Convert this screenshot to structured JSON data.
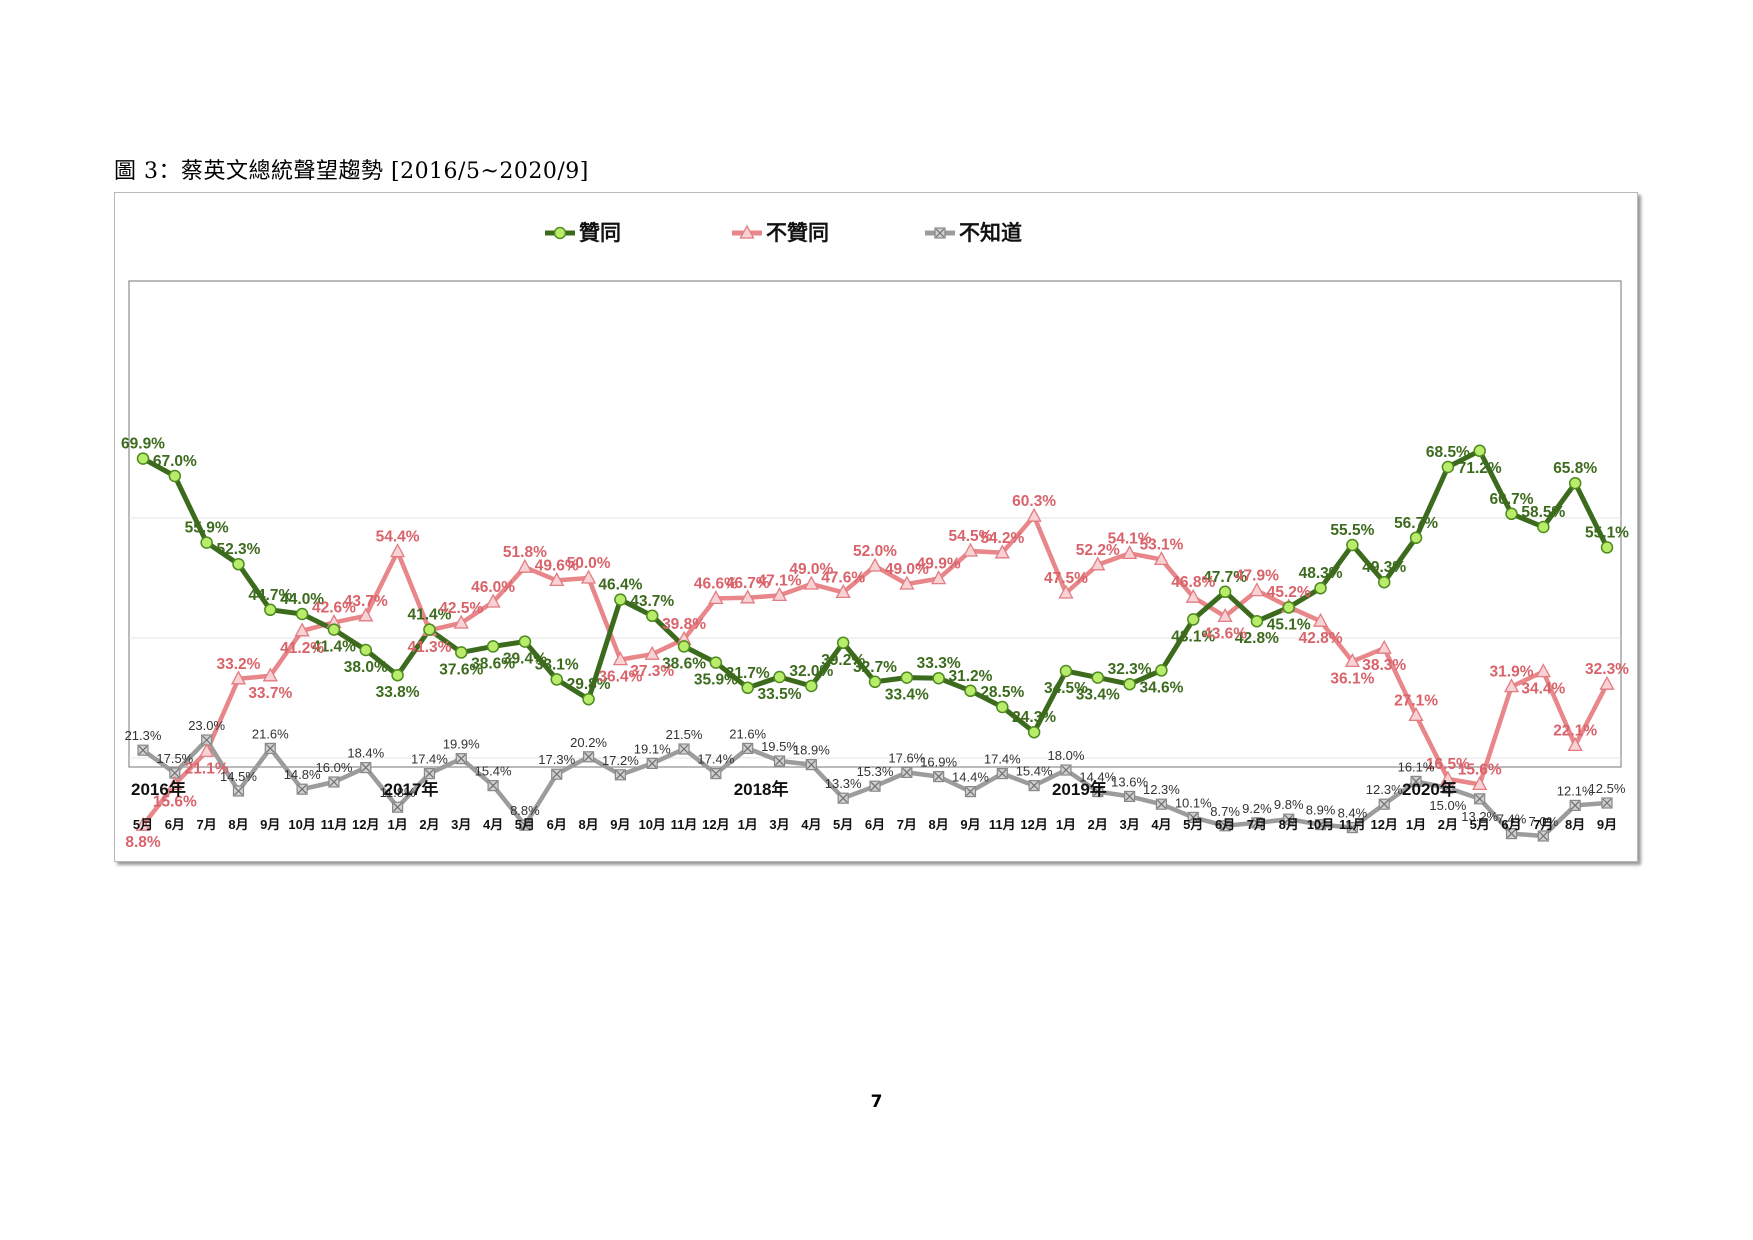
{
  "figure_title": "圖 3：蔡英文總統聲望趨勢 [2016/5~2020/9]",
  "page_number": "7",
  "chart_data": {
    "type": "line",
    "legend_position": "top",
    "grid": true,
    "ylim": [
      0,
      80
    ],
    "categories": [
      "5月",
      "6月",
      "7月",
      "8月",
      "9月",
      "10月",
      "11月",
      "12月",
      "1月",
      "2月",
      "3月",
      "4月",
      "5月",
      "6月",
      "8月",
      "9月",
      "10月",
      "11月",
      "12月",
      "1月",
      "3月",
      "4月",
      "5月",
      "6月",
      "7月",
      "8月",
      "9月",
      "11月",
      "12月",
      "1月",
      "2月",
      "3月",
      "4月",
      "5月",
      "6月",
      "7月",
      "8月",
      "10月",
      "11月",
      "12月",
      "1月",
      "2月",
      "5月",
      "6月",
      "7月",
      "8月",
      "9月"
    ],
    "year_labels": [
      {
        "label": "2016年",
        "index": 0
      },
      {
        "label": "2017年",
        "index": 8
      },
      {
        "label": "2018年",
        "index": 19
      },
      {
        "label": "2019年",
        "index": 29
      },
      {
        "label": "2020年",
        "index": 40
      }
    ],
    "series": [
      {
        "name": "贊同",
        "color": "#3d6b1e",
        "marker": "circle",
        "values": [
          69.9,
          67.0,
          55.9,
          52.3,
          44.7,
          44.0,
          41.4,
          38.0,
          33.8,
          41.4,
          37.6,
          38.6,
          39.4,
          33.1,
          29.8,
          46.4,
          43.7,
          38.6,
          35.9,
          31.7,
          33.5,
          32.0,
          39.2,
          32.7,
          33.4,
          33.3,
          31.2,
          28.5,
          24.3,
          34.5,
          33.4,
          32.3,
          34.6,
          43.1,
          47.7,
          42.8,
          45.1,
          48.3,
          55.5,
          49.3,
          56.7,
          68.5,
          71.2,
          60.7,
          58.5,
          65.8,
          55.1
        ]
      },
      {
        "name": "不贊同",
        "color": "#e8868a",
        "marker": "triangle",
        "values": [
          8.8,
          15.6,
          21.1,
          33.2,
          33.7,
          41.2,
          42.6,
          43.7,
          54.4,
          41.3,
          42.5,
          46.0,
          51.8,
          49.6,
          50.0,
          36.4,
          37.3,
          39.8,
          46.6,
          46.7,
          47.1,
          49.0,
          47.6,
          52.0,
          49.0,
          49.9,
          54.5,
          54.2,
          60.3,
          47.5,
          52.2,
          54.1,
          53.1,
          46.8,
          43.6,
          47.9,
          45.2,
          42.8,
          36.1,
          38.3,
          27.1,
          16.5,
          15.6,
          31.9,
          34.4,
          22.1,
          32.3
        ]
      },
      {
        "name": "不知道",
        "color": "#9c9c9c",
        "marker": "x-square",
        "values": [
          21.3,
          17.5,
          23.0,
          14.5,
          21.6,
          14.8,
          16.0,
          18.4,
          11.8,
          17.4,
          19.9,
          15.4,
          8.8,
          17.3,
          20.2,
          17.2,
          19.1,
          21.5,
          17.4,
          21.6,
          19.5,
          18.9,
          13.3,
          15.3,
          17.6,
          16.9,
          14.4,
          17.4,
          15.4,
          18.0,
          14.4,
          13.6,
          12.3,
          10.1,
          8.7,
          9.2,
          9.8,
          8.9,
          8.4,
          12.3,
          16.1,
          15.0,
          13.2,
          7.4,
          7.0,
          12.1,
          12.5
        ]
      }
    ]
  }
}
